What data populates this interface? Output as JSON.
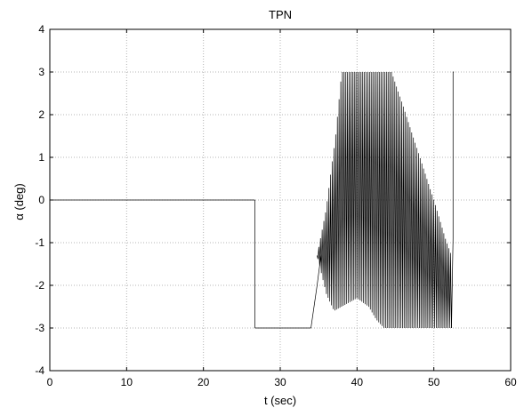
{
  "chart_data": {
    "type": "line",
    "title": "TPN",
    "xlabel": "t (sec)",
    "ylabel": "α (deg)",
    "xlim": [
      0,
      60
    ],
    "ylim": [
      -4,
      4
    ],
    "xticks": [
      0,
      10,
      20,
      30,
      40,
      50,
      60
    ],
    "yticks": [
      -4,
      -3,
      -2,
      -1,
      0,
      1,
      2,
      3,
      4
    ],
    "grid": true,
    "series": [
      {
        "description_segments": [
          {
            "x": [
              0,
              26.7
            ],
            "y": [
              0,
              0
            ]
          },
          {
            "x": [
              26.7,
              26.7
            ],
            "y": [
              0,
              -3
            ]
          },
          {
            "x": [
              26.7,
              34.0
            ],
            "y": [
              -3,
              -3
            ]
          },
          {
            "x": [
              34.0,
              34.8,
              35.3
            ],
            "y": [
              -3,
              -2.0,
              -1.3
            ]
          }
        ],
        "oscillation": {
          "x_start": 34.8,
          "x_end": 52.3,
          "period_sec": 0.22,
          "upper_envelope": {
            "x": [
              34.8,
              36.0,
              37.2,
              38.0,
              44.5,
              46.0,
              48.0,
              50.0,
              51.5,
              52.3
            ],
            "y": [
              -1.3,
              -0.2,
              1.5,
              3.0,
              3.0,
              2.2,
              1.1,
              0.0,
              -0.9,
              -1.3
            ]
          },
          "lower_envelope": {
            "x": [
              34.8,
              36.0,
              37.0,
              38.0,
              39.0,
              40.0,
              41.5,
              42.5,
              43.5,
              45.0,
              47.0,
              49.0,
              51.0,
              52.3
            ],
            "y": [
              -1.3,
              -2.2,
              -2.6,
              -2.5,
              -2.4,
              -2.3,
              -2.5,
              -2.8,
              -3.0,
              -3.0,
              -3.0,
              -3.0,
              -3.0,
              -3.0
            ]
          }
        },
        "end_spike": {
          "x": [
            52.3,
            52.5,
            52.5,
            52.6
          ],
          "y": [
            -3.0,
            -0.9,
            3.0,
            3.0
          ]
        }
      }
    ]
  }
}
